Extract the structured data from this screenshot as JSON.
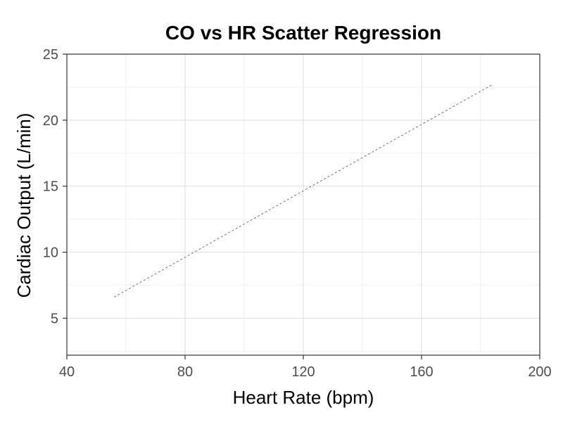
{
  "chart_data": {
    "type": "scatter",
    "title": "CO vs HR Scatter Regression",
    "xlabel": "Heart Rate (bpm)",
    "ylabel": "Cardiac Output (L/min)",
    "xlim": [
      40,
      200
    ],
    "ylim": [
      2.2,
      25
    ],
    "x_ticks": [
      40,
      80,
      120,
      160,
      200
    ],
    "y_ticks": [
      5,
      10,
      15,
      20,
      25
    ],
    "grid": true,
    "legend": "none",
    "series": [
      {
        "kind": "regression-line",
        "line_style": "dashed",
        "color": "#666666",
        "x": [
          56,
          184
        ],
        "y": [
          6.6,
          22.7
        ]
      }
    ]
  }
}
